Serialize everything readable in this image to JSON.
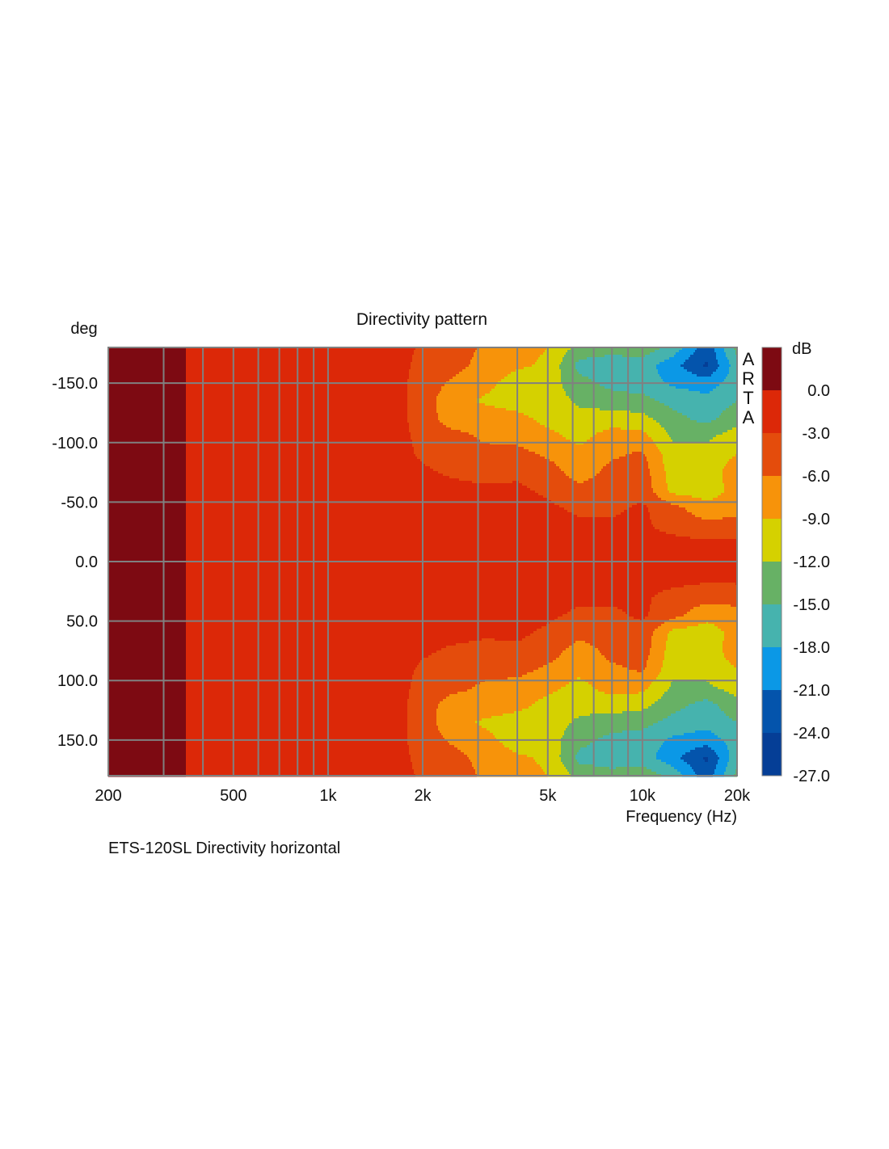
{
  "chart_data": {
    "type": "heatmap",
    "title": "Directivity pattern",
    "subtitle": "ETS-120SL  Directivity horizontal",
    "xlabel": "Frequency (Hz)",
    "ylabel": "deg",
    "watermark": "ARTA",
    "x_scale": "log",
    "xlim": [
      200,
      20000
    ],
    "ylim": [
      -180,
      180
    ],
    "x_ticks": [
      {
        "value": 200,
        "label": "200"
      },
      {
        "value": 500,
        "label": "500"
      },
      {
        "value": 1000,
        "label": "1k"
      },
      {
        "value": 2000,
        "label": "2k"
      },
      {
        "value": 5000,
        "label": "5k"
      },
      {
        "value": 10000,
        "label": "10k"
      },
      {
        "value": 20000,
        "label": "20k"
      }
    ],
    "y_ticks": [
      {
        "value": -150,
        "label": "-150.0"
      },
      {
        "value": -100,
        "label": "-100.0"
      },
      {
        "value": -50,
        "label": "-50.0"
      },
      {
        "value": 0,
        "label": "0.0"
      },
      {
        "value": 50,
        "label": "50.0"
      },
      {
        "value": 100,
        "label": "100.0"
      },
      {
        "value": 150,
        "label": "150.0"
      }
    ],
    "grid": true,
    "colorbar": {
      "unit": "dB",
      "levels": [
        "0.0",
        "-3.0",
        "-6.0",
        "-9.0",
        "-12.0",
        "-15.0",
        "-18.0",
        "-21.0",
        "-24.0",
        "-27.0"
      ],
      "thresholds": [
        0,
        -3,
        -6,
        -9,
        -12,
        -15,
        -18,
        -21,
        -24
      ],
      "colors": [
        "#7d0a12",
        "#dc2808",
        "#e44c0c",
        "#f7930a",
        "#d5d100",
        "#67b165",
        "#46b3ae",
        "#0b98e6",
        "#0454ac",
        "#053e96"
      ]
    },
    "symmetric_about_zero": true,
    "frequencies": [
      200,
      250,
      315,
      400,
      500,
      630,
      800,
      1000,
      1250,
      1600,
      2000,
      2500,
      3150,
      4000,
      5000,
      6300,
      8000,
      10000,
      12500,
      16000,
      20000
    ],
    "angles": [
      0,
      15,
      30,
      45,
      60,
      75,
      90,
      105,
      120,
      135,
      150,
      165,
      180
    ],
    "values_db": [
      [
        1,
        1,
        1,
        -1,
        -1,
        -1,
        -1,
        -1,
        -1,
        -1,
        -1,
        -1.5,
        -2,
        -2,
        -2,
        -2,
        -2,
        -2,
        -1.5,
        -1.5,
        -2
      ],
      [
        1,
        1,
        1,
        -1,
        -1,
        -1,
        -1,
        -1,
        -1,
        -1,
        -1,
        -1.5,
        -2,
        -2,
        -2,
        -2,
        -2,
        -2,
        -2,
        -2.5,
        -2.5
      ],
      [
        1,
        1,
        1,
        -1,
        -1,
        -1,
        -1,
        -1,
        -1,
        -1,
        -1.5,
        -1.5,
        -2,
        -2,
        -2,
        -2.5,
        -2.5,
        -2.5,
        -4,
        -5,
        -4.5
      ],
      [
        1,
        1,
        1,
        -1,
        -1,
        -1,
        -1,
        -1,
        -1,
        -1,
        -1.5,
        -1.5,
        -2,
        -2,
        -2.5,
        -3.5,
        -3.5,
        -2.5,
        -5,
        -8,
        -7.5
      ],
      [
        1,
        1,
        1,
        -1,
        -1,
        -1,
        -1,
        -1,
        -1,
        -1,
        -2,
        -2,
        -2.5,
        -2.5,
        -3.5,
        -5,
        -4.5,
        -4,
        -10,
        -10.5,
        -8
      ],
      [
        1,
        1,
        1,
        -1,
        -1,
        -1,
        -1,
        -1,
        -1,
        -1.2,
        -2.5,
        -3.5,
        -4,
        -3.5,
        -4.5,
        -7.5,
        -5,
        -4.5,
        -10.5,
        -11,
        -7
      ],
      [
        1,
        1,
        1,
        -1,
        -1,
        -1,
        -1,
        -1,
        -1,
        -1.5,
        -3.5,
        -4.5,
        -5,
        -5,
        -6.5,
        -8,
        -6.5,
        -5.5,
        -11,
        -11,
        -9
      ],
      [
        1,
        1,
        1,
        -1,
        -1,
        -1,
        -1,
        -1,
        -1,
        -1.5,
        -4,
        -5,
        -6.5,
        -7,
        -8,
        -10,
        -7.5,
        -8,
        -12.5,
        -12.5,
        -10.5
      ],
      [
        1,
        1,
        1,
        -1,
        -1,
        -1,
        -1,
        -1,
        -1,
        -1.5,
        -4.5,
        -7.5,
        -7,
        -8,
        -10,
        -11,
        -10.5,
        -11,
        -14,
        -16,
        -13
      ],
      [
        1,
        1,
        1,
        -1,
        -1,
        -1,
        -1,
        -1,
        -1,
        -1.5,
        -4.5,
        -8,
        -9.5,
        -10.5,
        -10.5,
        -12.5,
        -13.5,
        -14,
        -16,
        -17,
        -15
      ],
      [
        1,
        1,
        1,
        -1,
        -1,
        -1,
        -1,
        -1,
        -1,
        -1.5,
        -4.5,
        -6.5,
        -8,
        -10.5,
        -10.5,
        -14,
        -16,
        -16.5,
        -18.5,
        -19.5,
        -16.5
      ],
      [
        1,
        1,
        1,
        -1,
        -1,
        -1,
        -1,
        -1,
        -1,
        -1.5,
        -4,
        -5,
        -7,
        -8.5,
        -9.5,
        -16,
        -16.5,
        -16.5,
        -20,
        -24.5,
        -16
      ],
      [
        1,
        1,
        1,
        -1,
        -1,
        -1,
        -1,
        -1,
        -1,
        -1.5,
        -3.5,
        -4.5,
        -6.5,
        -8,
        -9,
        -13,
        -14,
        -13,
        -16,
        -23,
        -14
      ]
    ]
  }
}
